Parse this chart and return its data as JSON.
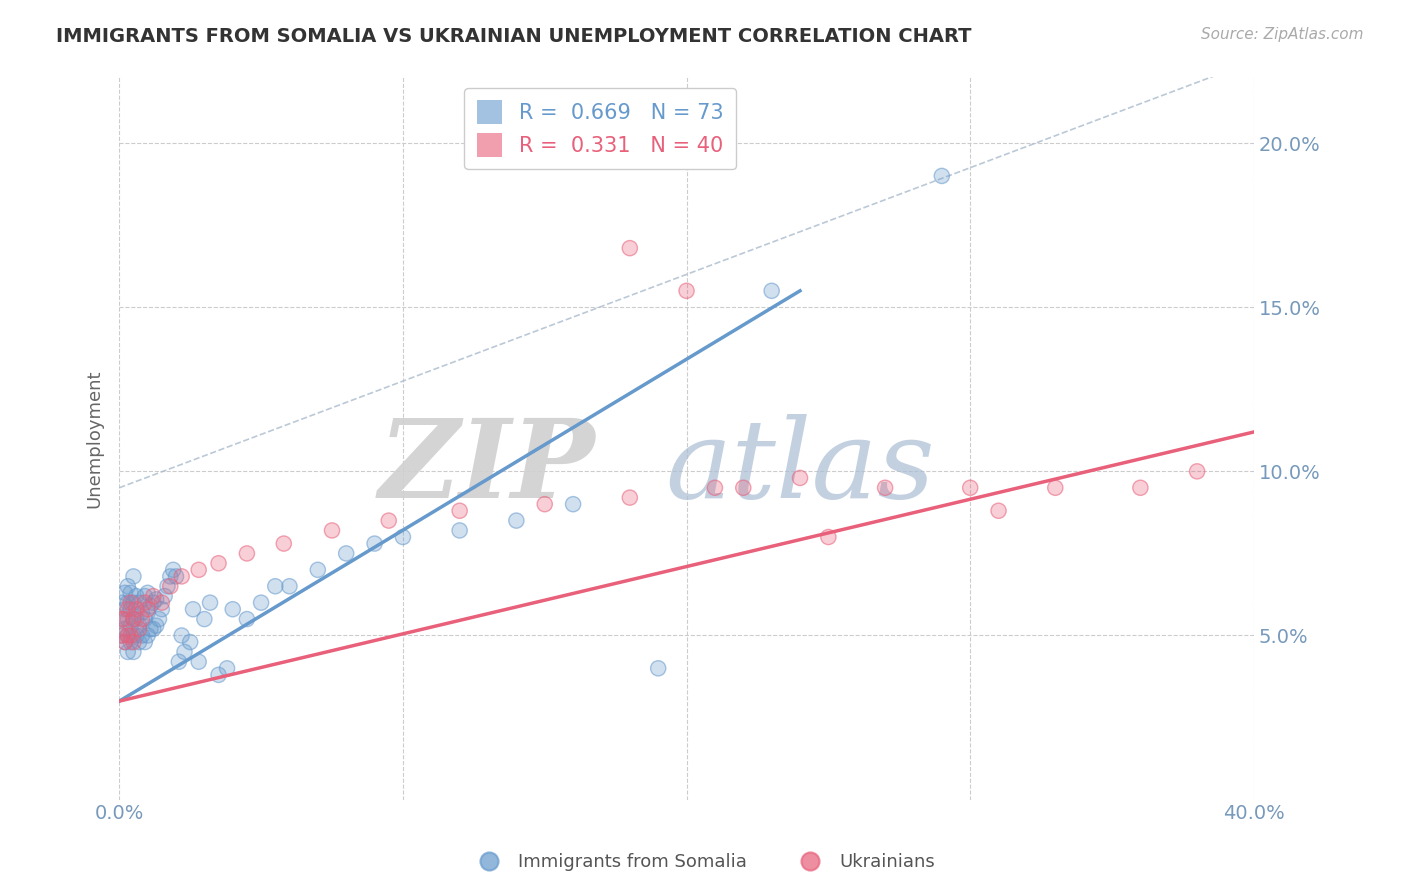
{
  "title": "IMMIGRANTS FROM SOMALIA VS UKRAINIAN UNEMPLOYMENT CORRELATION CHART",
  "source": "Source: ZipAtlas.com",
  "ylabel": "Unemployment",
  "somalia_color": "#6699cc",
  "ukraine_color": "#e8607a",
  "tick_label_color": "#7799bb",
  "somalia_R": 0.669,
  "somalia_N": 73,
  "ukraine_R": 0.331,
  "ukraine_N": 40,
  "x_min": 0.0,
  "x_max": 0.4,
  "y_min": 0.0,
  "y_max": 0.22,
  "somalia_line": [
    0.0,
    0.03,
    0.24,
    0.155
  ],
  "ukraine_line": [
    0.0,
    0.03,
    0.4,
    0.112
  ],
  "diagonal_line": [
    0.0,
    0.095,
    0.4,
    0.225
  ],
  "somalia_scatter_x": [
    0.001,
    0.001,
    0.001,
    0.002,
    0.002,
    0.002,
    0.002,
    0.003,
    0.003,
    0.003,
    0.003,
    0.003,
    0.004,
    0.004,
    0.004,
    0.004,
    0.005,
    0.005,
    0.005,
    0.005,
    0.005,
    0.006,
    0.006,
    0.006,
    0.007,
    0.007,
    0.007,
    0.008,
    0.008,
    0.009,
    0.009,
    0.009,
    0.01,
    0.01,
    0.01,
    0.011,
    0.011,
    0.012,
    0.012,
    0.013,
    0.013,
    0.014,
    0.015,
    0.016,
    0.017,
    0.018,
    0.019,
    0.02,
    0.021,
    0.022,
    0.023,
    0.025,
    0.026,
    0.028,
    0.03,
    0.032,
    0.035,
    0.038,
    0.04,
    0.045,
    0.05,
    0.055,
    0.06,
    0.07,
    0.08,
    0.09,
    0.1,
    0.12,
    0.14,
    0.16,
    0.19,
    0.23,
    0.29
  ],
  "somalia_scatter_y": [
    0.05,
    0.055,
    0.06,
    0.048,
    0.052,
    0.058,
    0.063,
    0.045,
    0.05,
    0.055,
    0.06,
    0.065,
    0.048,
    0.053,
    0.058,
    0.063,
    0.045,
    0.05,
    0.055,
    0.06,
    0.068,
    0.05,
    0.055,
    0.062,
    0.048,
    0.053,
    0.06,
    0.05,
    0.057,
    0.048,
    0.055,
    0.062,
    0.05,
    0.057,
    0.063,
    0.052,
    0.059,
    0.052,
    0.06,
    0.053,
    0.061,
    0.055,
    0.058,
    0.062,
    0.065,
    0.068,
    0.07,
    0.068,
    0.042,
    0.05,
    0.045,
    0.048,
    0.058,
    0.042,
    0.055,
    0.06,
    0.038,
    0.04,
    0.058,
    0.055,
    0.06,
    0.065,
    0.065,
    0.07,
    0.075,
    0.078,
    0.08,
    0.082,
    0.085,
    0.09,
    0.04,
    0.155,
    0.19
  ],
  "ukraine_scatter_x": [
    0.001,
    0.001,
    0.002,
    0.002,
    0.003,
    0.003,
    0.004,
    0.004,
    0.005,
    0.005,
    0.006,
    0.007,
    0.008,
    0.009,
    0.01,
    0.012,
    0.015,
    0.018,
    0.022,
    0.028,
    0.035,
    0.045,
    0.058,
    0.075,
    0.095,
    0.12,
    0.15,
    0.18,
    0.21,
    0.24,
    0.27,
    0.3,
    0.33,
    0.36,
    0.18,
    0.2,
    0.22,
    0.25,
    0.31,
    0.38
  ],
  "ukraine_scatter_y": [
    0.05,
    0.055,
    0.048,
    0.055,
    0.05,
    0.058,
    0.05,
    0.06,
    0.048,
    0.055,
    0.058,
    0.052,
    0.055,
    0.06,
    0.058,
    0.062,
    0.06,
    0.065,
    0.068,
    0.07,
    0.072,
    0.075,
    0.078,
    0.082,
    0.085,
    0.088,
    0.09,
    0.092,
    0.095,
    0.098,
    0.095,
    0.095,
    0.095,
    0.095,
    0.168,
    0.155,
    0.095,
    0.08,
    0.088,
    0.1
  ],
  "background_color": "#ffffff",
  "grid_color": "#cccccc"
}
